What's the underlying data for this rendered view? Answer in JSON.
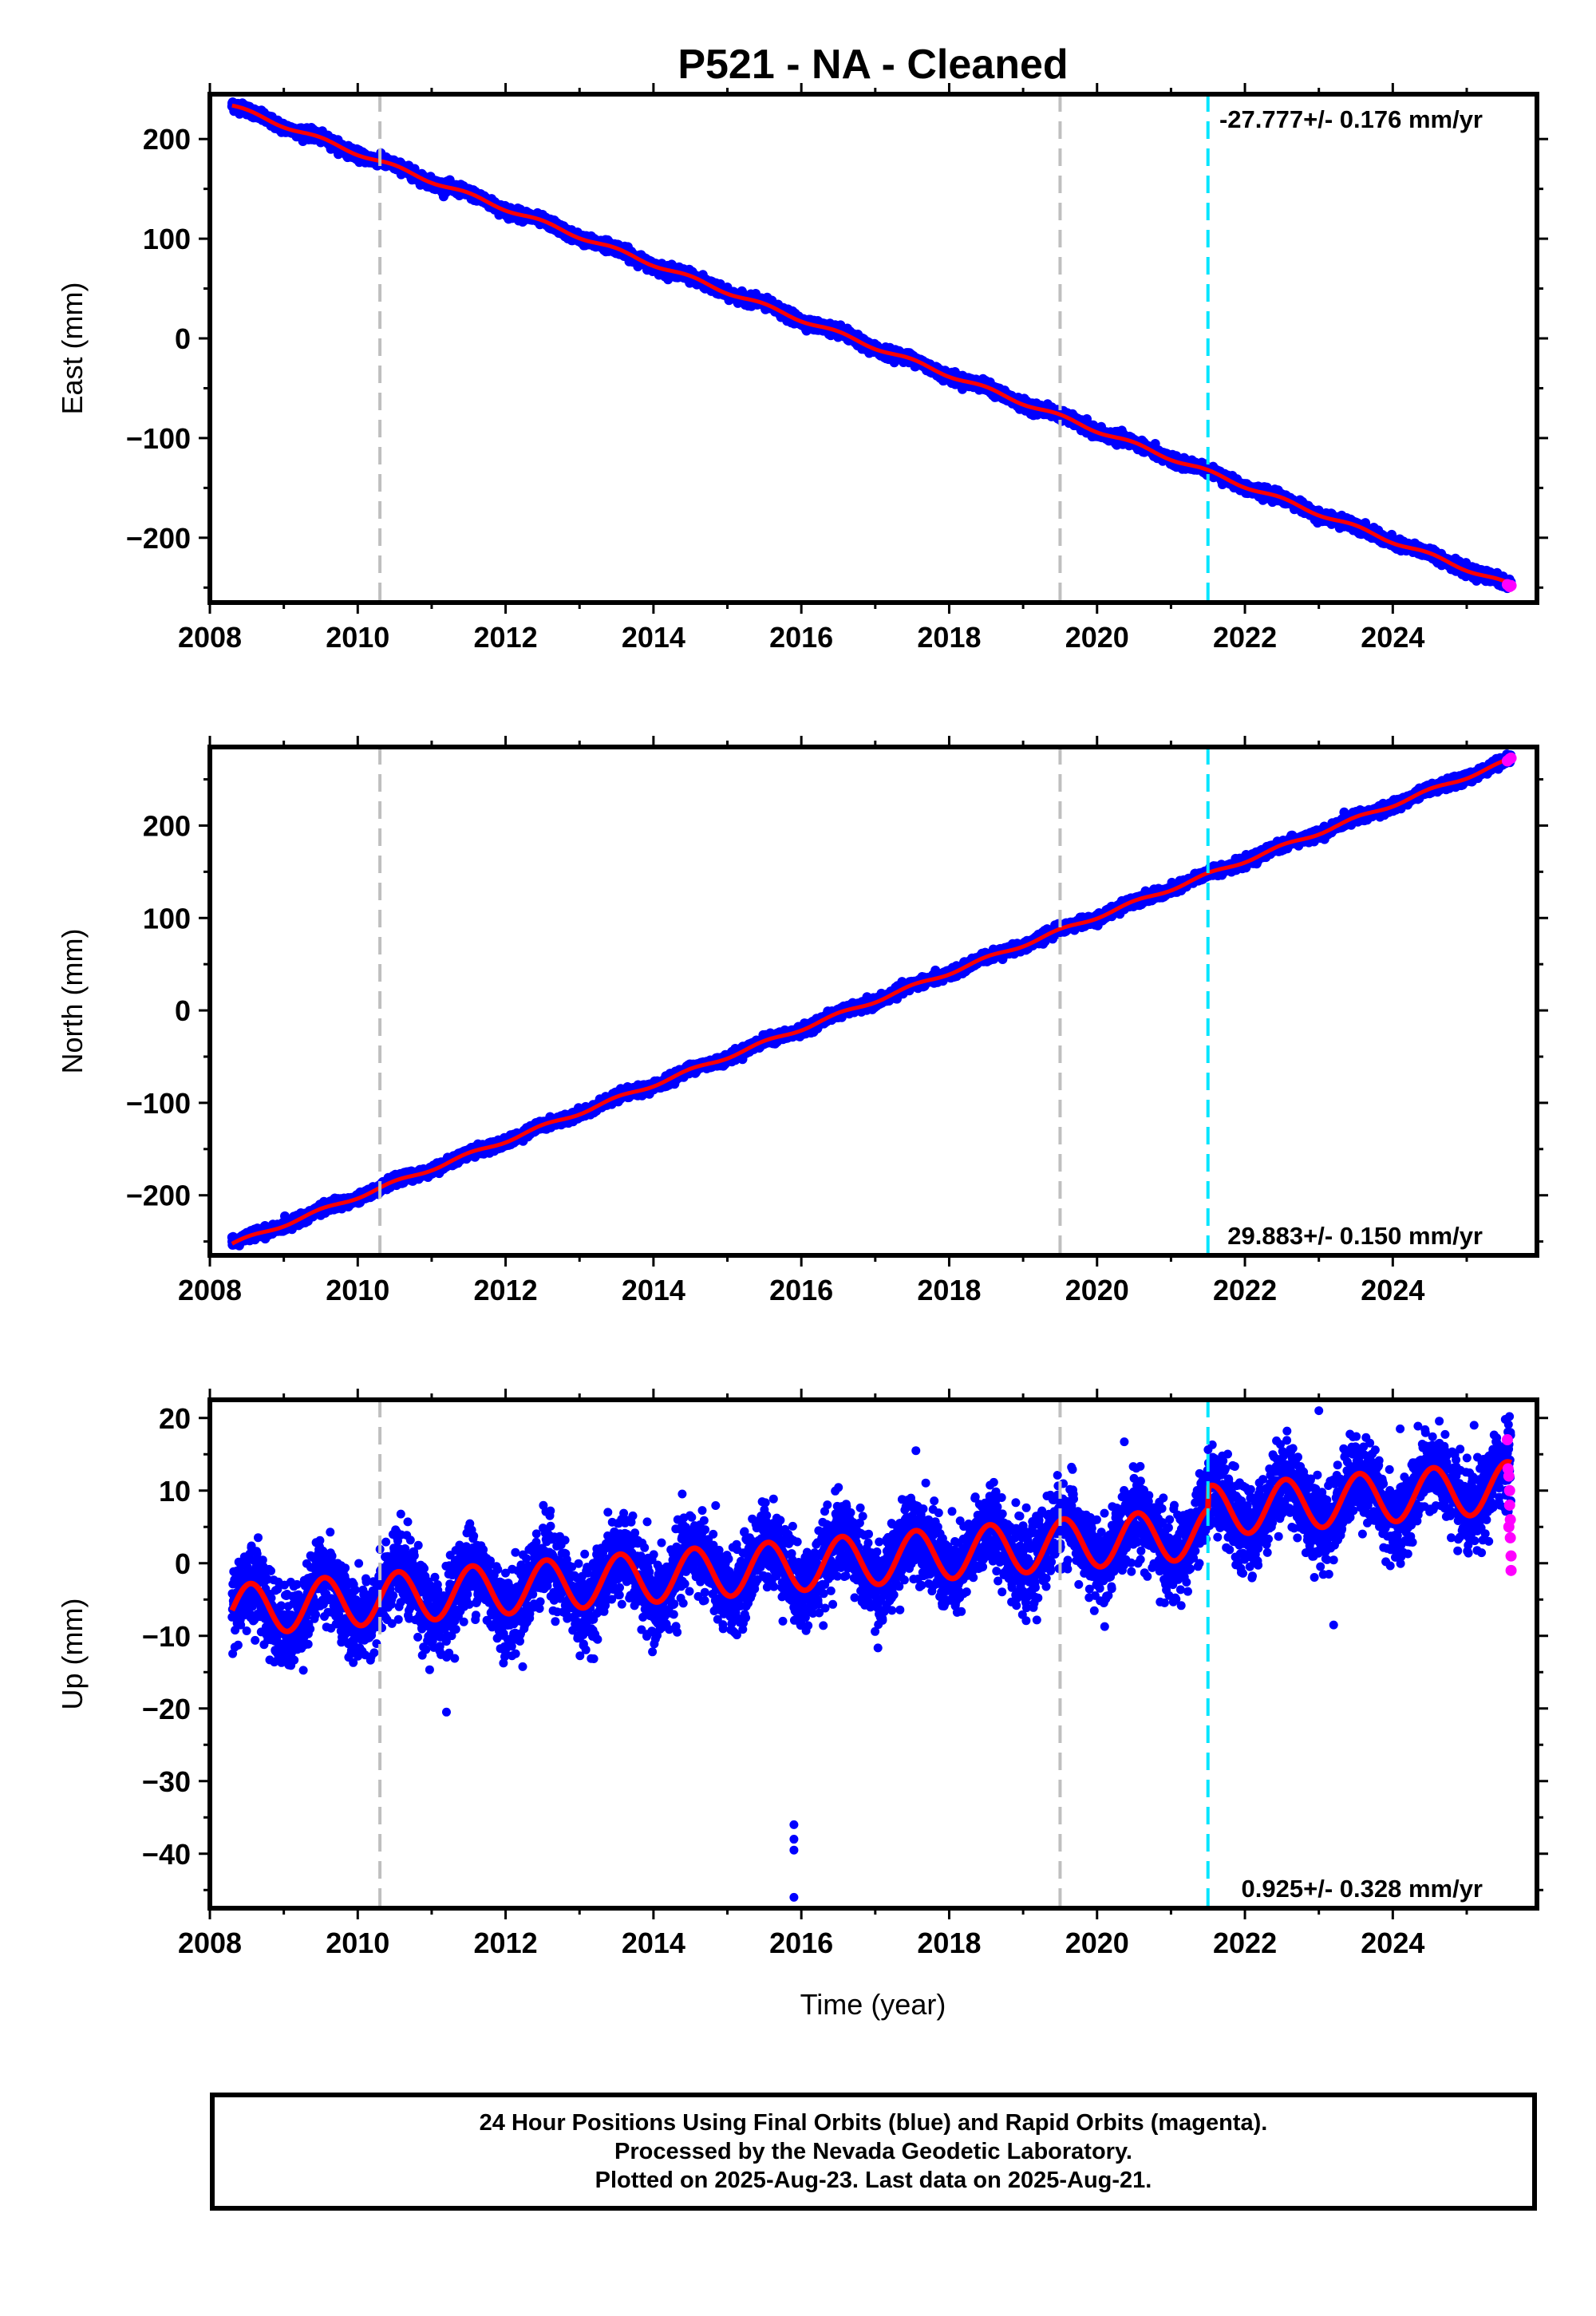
{
  "colors": {
    "final_orbits": "#0000ff",
    "rapid_orbits": "#ff00ff",
    "model_fit": "#ff0000",
    "event_line": "#bfbfbf",
    "equipment_line": "#00e5ff",
    "frame": "#000000"
  },
  "chart_data": [
    {
      "type": "scatter",
      "title": "P521  - NA - Cleaned",
      "xlabel": "",
      "ylabel": "East (mm)",
      "xlim": [
        2008.0,
        2025.95
      ],
      "ylim": [
        -265,
        245
      ],
      "xticks": [
        "2008",
        "2010",
        "2012",
        "2014",
        "2016",
        "2018",
        "2020",
        "2022",
        "2024"
      ],
      "yticks": [
        "200",
        "100",
        "0",
        "−100",
        "−200"
      ],
      "rate_label": "-27.777+/- 0.176 mm/yr",
      "rate_label_position": "top-right",
      "grid": false,
      "series_model": {
        "t0": 2008.3,
        "t1": 2025.6,
        "y0": 233,
        "y1": -248,
        "seasonal_amplitude": 2,
        "noise_sd": 2.5
      },
      "rapid_orbit_points": [
        [
          2025.55,
          -247
        ],
        [
          2025.58,
          -249
        ],
        [
          2025.6,
          -248
        ]
      ],
      "vertical_lines": [
        {
          "x": 2010.3,
          "kind": "event"
        },
        {
          "x": 2019.5,
          "kind": "event"
        },
        {
          "x": 2021.5,
          "kind": "equipment"
        }
      ]
    },
    {
      "type": "scatter",
      "title": "",
      "xlabel": "",
      "ylabel": "North (mm)",
      "xlim": [
        2008.0,
        2025.95
      ],
      "ylim": [
        -265,
        285
      ],
      "xticks": [
        "2008",
        "2010",
        "2012",
        "2014",
        "2016",
        "2018",
        "2020",
        "2022",
        "2024"
      ],
      "yticks": [
        "200",
        "100",
        "0",
        "−100",
        "−200"
      ],
      "rate_label": "29.883+/- 0.150 mm/yr",
      "rate_label_position": "bottom-right",
      "grid": false,
      "series_model": {
        "t0": 2008.3,
        "t1": 2025.6,
        "y0": -253,
        "y1": 271,
        "seasonal_amplitude": 2,
        "noise_sd": 2.5
      },
      "rapid_orbit_points": [
        [
          2025.55,
          270
        ],
        [
          2025.58,
          272
        ],
        [
          2025.6,
          273
        ]
      ],
      "vertical_lines": [
        {
          "x": 2010.3,
          "kind": "event"
        },
        {
          "x": 2019.5,
          "kind": "event"
        },
        {
          "x": 2021.5,
          "kind": "equipment"
        }
      ]
    },
    {
      "type": "scatter",
      "title": "",
      "xlabel": "Time (year)",
      "ylabel": "Up (mm)",
      "xlim": [
        2008.0,
        2025.95
      ],
      "ylim": [
        -47.5,
        22.5
      ],
      "xticks": [
        "2008",
        "2010",
        "2012",
        "2014",
        "2016",
        "2018",
        "2020",
        "2022",
        "2024"
      ],
      "yticks": [
        "20",
        "10",
        "0",
        "−10",
        "−20",
        "−30",
        "−40"
      ],
      "rate_label": "0.925+/- 0.328 mm/yr",
      "rate_label_position": "bottom-right",
      "grid": false,
      "series_model": {
        "t0": 2008.3,
        "t1": 2025.6,
        "y0": -6.5,
        "y1": 7.5,
        "seasonal_amplitude": 3.5,
        "seasonal_peak_phase": 0.55,
        "noise_sd": 2.8
      },
      "step_at_equipment": 3,
      "outliers": [
        [
          2015.9,
          -36
        ],
        [
          2015.9,
          -38
        ],
        [
          2015.9,
          -39.5
        ],
        [
          2015.9,
          -46
        ],
        [
          2011.2,
          -20.5
        ],
        [
          2023.0,
          21
        ],
        [
          2023.2,
          -8.5
        ],
        [
          2017.55,
          15.5
        ],
        [
          2024.1,
          18.5
        ],
        [
          2025.1,
          19
        ]
      ],
      "rapid_orbit_points": [
        [
          2025.55,
          17
        ],
        [
          2025.56,
          13
        ],
        [
          2025.57,
          12
        ],
        [
          2025.58,
          10
        ],
        [
          2025.58,
          8
        ],
        [
          2025.59,
          6
        ],
        [
          2025.59,
          3.5
        ],
        [
          2025.6,
          1
        ],
        [
          2025.6,
          -1
        ],
        [
          2025.57,
          5
        ]
      ],
      "vertical_lines": [
        {
          "x": 2010.3,
          "kind": "event"
        },
        {
          "x": 2019.5,
          "kind": "event"
        },
        {
          "x": 2021.5,
          "kind": "equipment"
        }
      ]
    }
  ],
  "footer": {
    "line1": "24 Hour Positions Using Final Orbits (blue) and Rapid Orbits (magenta).",
    "line2": "Processed by the Nevada Geodetic Laboratory.",
    "line3": "Plotted on 2025-Aug-23. Last data on 2025-Aug-21."
  }
}
